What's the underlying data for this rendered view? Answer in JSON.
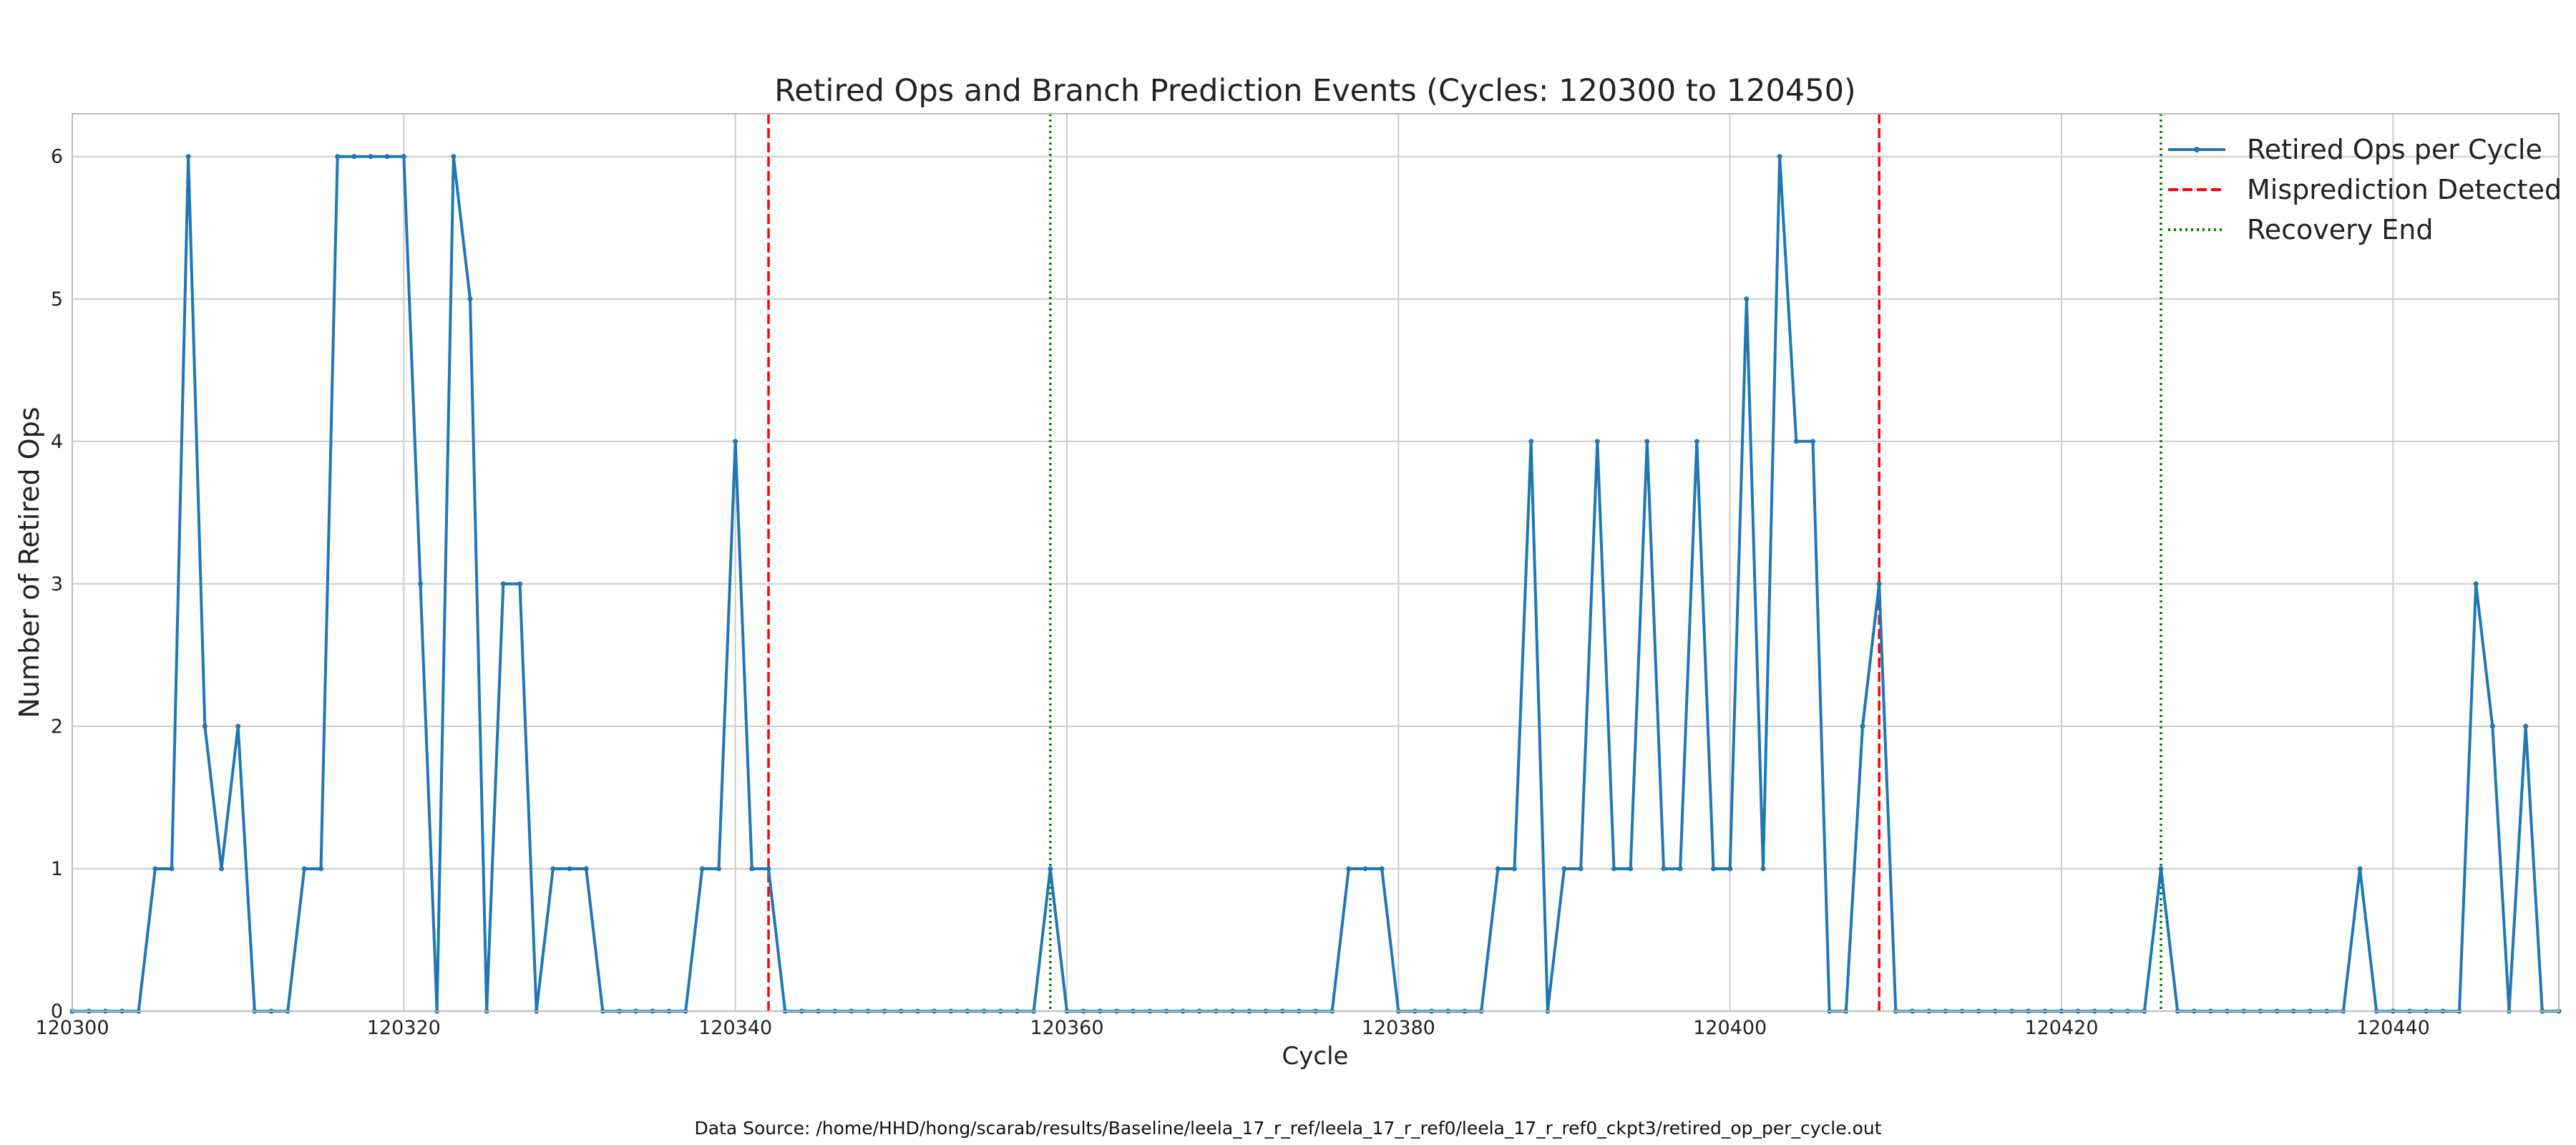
{
  "footer_text": "Data Source: /home/HHD/hong/scarab/results/Baseline/leela_17_r_ref/leela_17_r_ref0/leela_17_r_ref0_ckpt3/retired_op_per_cycle.out",
  "colors": {
    "series": "#1f77b4",
    "misprediction": "#ff0000",
    "recovery": "#008000",
    "grid": "#cccccc",
    "frame": "#bbbbbb"
  },
  "chart_data": {
    "type": "line",
    "title": "Retired Ops and Branch Prediction Events (Cycles: 120300 to 120450)",
    "xlabel": "Cycle",
    "ylabel": "Number of Retired Ops",
    "xlim": [
      120300,
      120450
    ],
    "ylim": [
      0,
      6.3
    ],
    "xticks": [
      120300,
      120320,
      120340,
      120360,
      120380,
      120400,
      120420,
      120440
    ],
    "yticks": [
      0,
      1,
      2,
      3,
      4,
      5,
      6
    ],
    "grid": true,
    "legend_position": "top-right",
    "x_start": 120300,
    "series": [
      {
        "name": "Retired Ops per Cycle",
        "values": [
          0,
          0,
          0,
          0,
          0,
          1,
          1,
          6,
          2,
          1,
          2,
          0,
          0,
          0,
          1,
          1,
          6,
          6,
          6,
          6,
          6,
          3,
          0,
          6,
          5,
          0,
          3,
          3,
          0,
          1,
          1,
          1,
          0,
          0,
          0,
          0,
          0,
          0,
          1,
          1,
          4,
          1,
          1,
          0,
          0,
          0,
          0,
          0,
          0,
          0,
          0,
          0,
          0,
          0,
          0,
          0,
          0,
          0,
          0,
          1,
          0,
          0,
          0,
          0,
          0,
          0,
          0,
          0,
          0,
          0,
          0,
          0,
          0,
          0,
          0,
          0,
          0,
          1,
          1,
          1,
          0,
          0,
          0,
          0,
          0,
          0,
          1,
          1,
          4,
          0,
          1,
          1,
          4,
          1,
          1,
          4,
          1,
          1,
          4,
          1,
          1,
          5,
          1,
          6,
          4,
          4,
          0,
          0,
          2,
          3,
          0,
          0,
          0,
          0,
          0,
          0,
          0,
          0,
          0,
          0,
          0,
          0,
          0,
          0,
          0,
          0,
          1,
          0,
          0,
          0,
          0,
          0,
          0,
          0,
          0,
          0,
          0,
          0,
          1,
          0,
          0,
          0,
          0,
          0,
          0,
          3,
          2,
          0,
          2,
          0,
          0
        ]
      }
    ],
    "events": [
      {
        "name": "Misprediction Detected",
        "style": "dashed",
        "cycles": [
          120342,
          120409
        ]
      },
      {
        "name": "Recovery End",
        "style": "dotted",
        "cycles": [
          120359,
          120426
        ]
      }
    ]
  }
}
